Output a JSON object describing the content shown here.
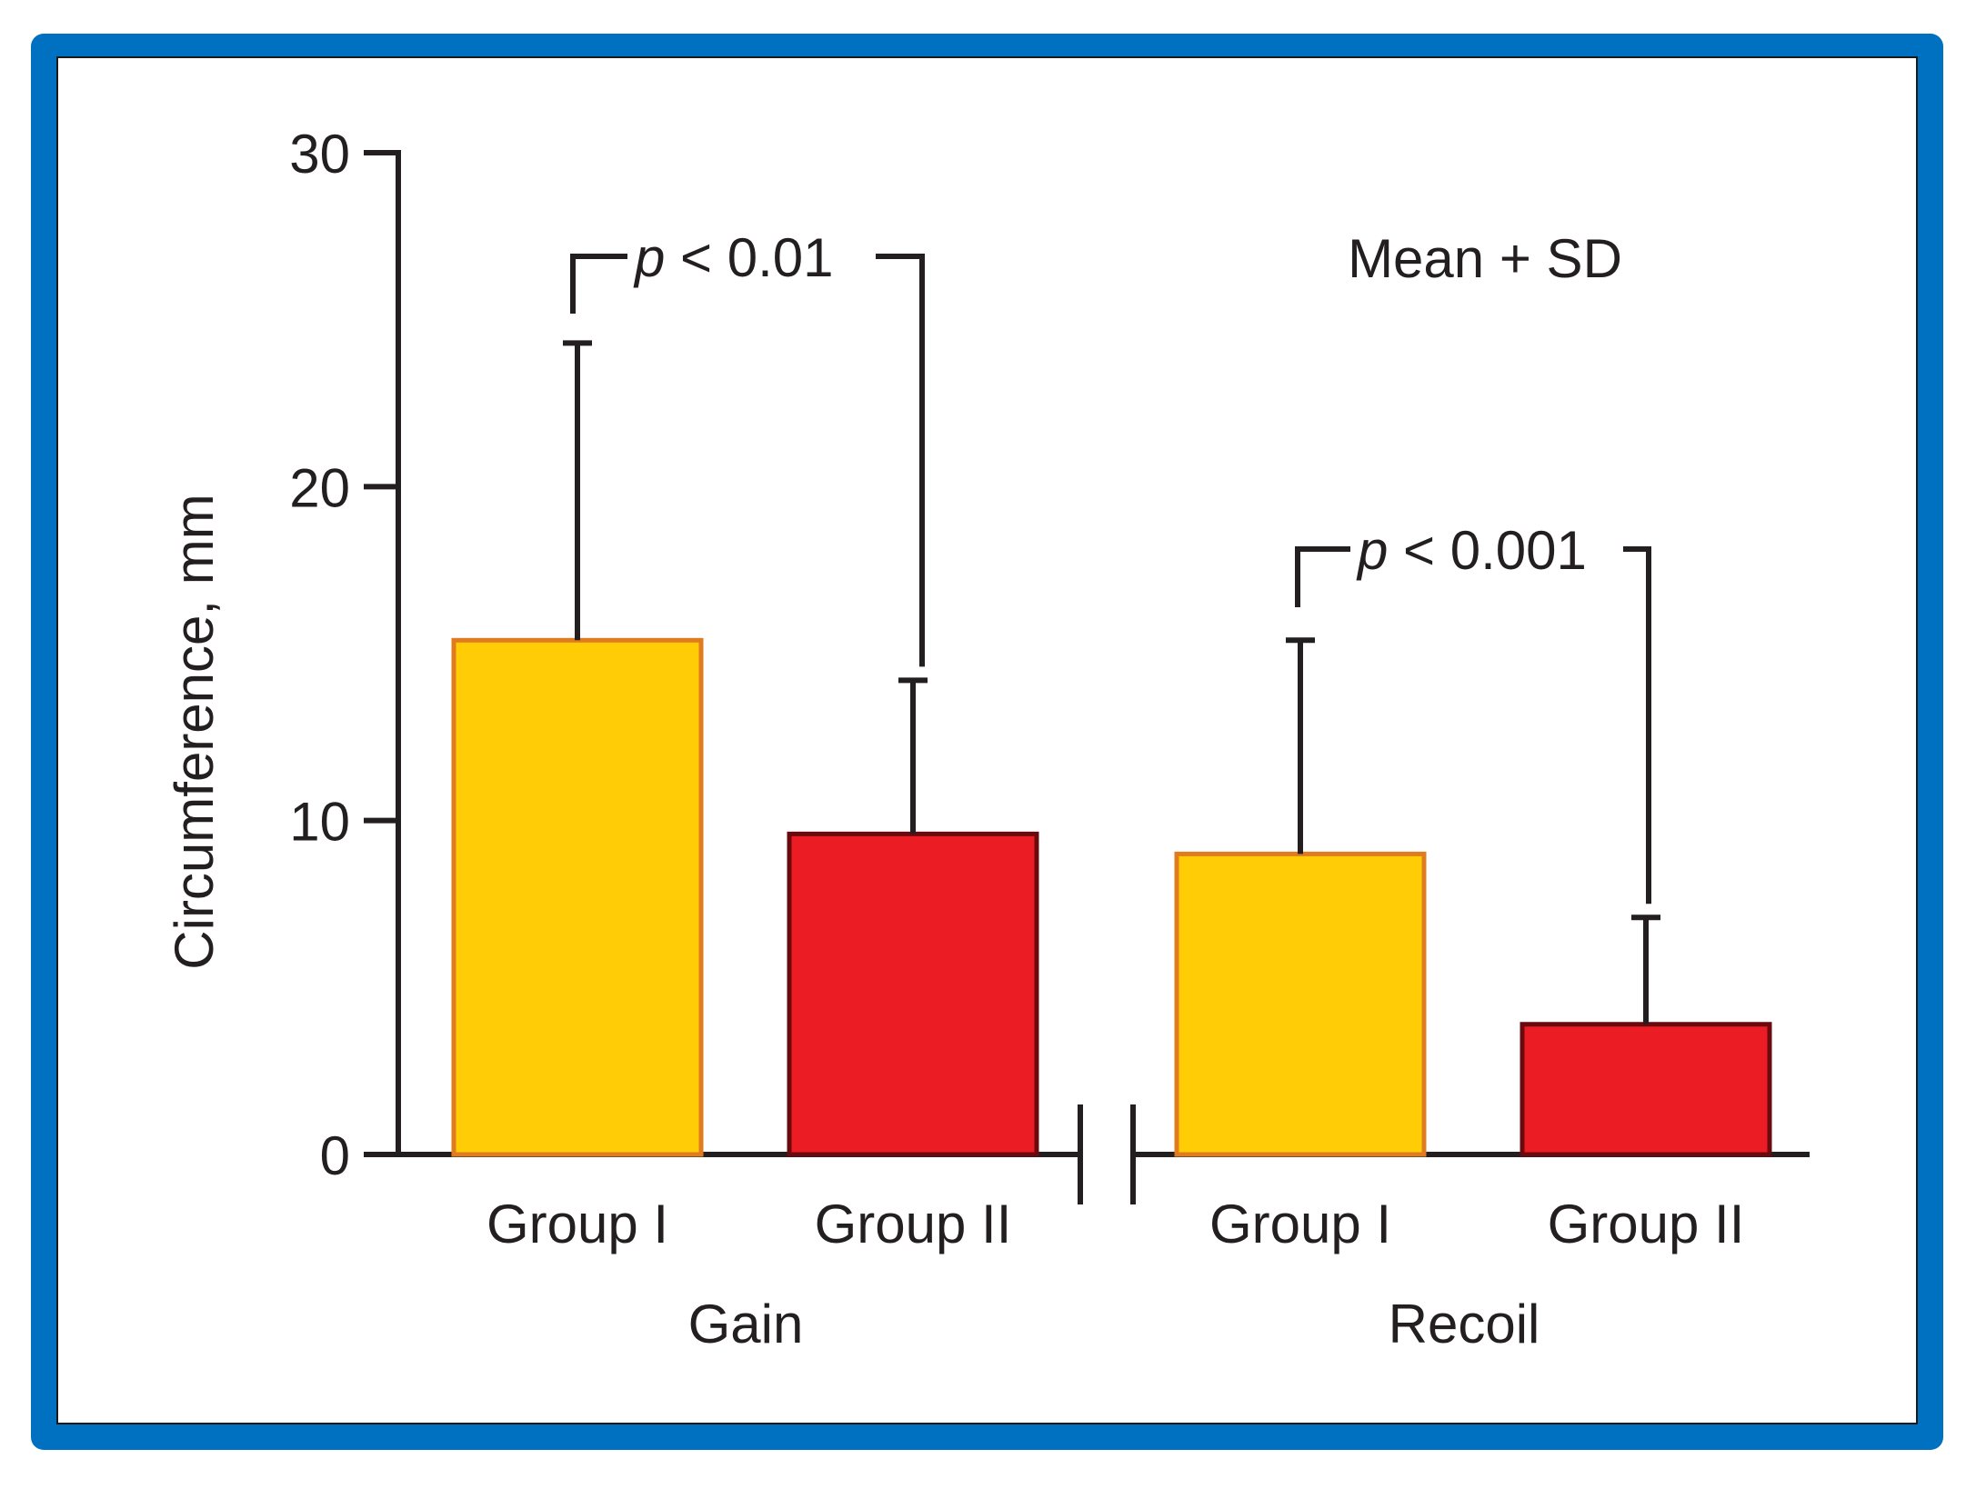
{
  "chart_data": {
    "type": "bar",
    "ylabel": "Circumference, mm",
    "ylim": [
      0,
      30
    ],
    "yticks": [
      0,
      10,
      20,
      30
    ],
    "annotation": "Mean + SD",
    "groups": [
      {
        "label": "Gain",
        "bars": [
          {
            "category": "Group I",
            "value": 15.4,
            "sd": 8.9,
            "color": "#ffcc05",
            "edge": "#e07b1f"
          },
          {
            "category": "Group II",
            "value": 9.6,
            "sd": 4.6,
            "color": "#ec1c24",
            "edge": "#6b0a0e"
          }
        ],
        "significance": {
          "prefix": "p",
          "text": " < 0.01"
        }
      },
      {
        "label": "Recoil",
        "bars": [
          {
            "category": "Group I",
            "value": 9.0,
            "sd": 6.4,
            "color": "#ffcc05",
            "edge": "#e07b1f"
          },
          {
            "category": "Group II",
            "value": 3.9,
            "sd": 3.2,
            "color": "#ec1c24",
            "edge": "#6b0a0e"
          }
        ],
        "significance": {
          "prefix": "p",
          "text": " < 0.001"
        }
      }
    ]
  },
  "frame": {
    "border_color": "#0070c0",
    "background": "#ffffff"
  }
}
